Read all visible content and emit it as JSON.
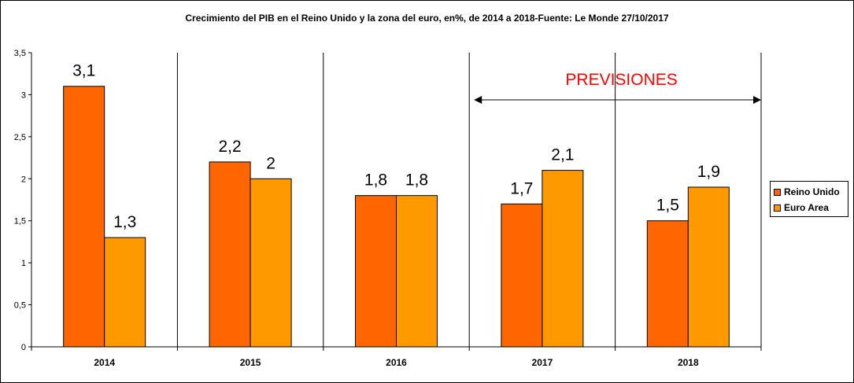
{
  "chart_data": {
    "type": "bar",
    "title": "Crecimiento del PIB en el Reino Unido y la zona del euro, en%, de 2014 a 2018-Fuente: Le Monde 27/10/2017",
    "categories": [
      "2014",
      "2015",
      "2016",
      "2017",
      "2018"
    ],
    "series": [
      {
        "name": "Reino Unido",
        "values": [
          3.1,
          2.2,
          1.8,
          1.7,
          1.5
        ],
        "labels": [
          "3,1",
          "2,2",
          "1,8",
          "1,7",
          "1,5"
        ],
        "color": "#FF6600"
      },
      {
        "name": "Euro Area",
        "values": [
          1.3,
          2.0,
          1.8,
          2.1,
          1.9
        ],
        "labels": [
          "1,3",
          "2",
          "1,8",
          "2,1",
          "1,9"
        ],
        "color": "#FF9900"
      }
    ],
    "ylim": [
      0,
      3.5
    ],
    "yticks": [
      0,
      0.5,
      1,
      1.5,
      2,
      2.5,
      3,
      3.5
    ],
    "ytick_labels": [
      "0",
      "0,5",
      "1",
      "1,5",
      "2",
      "2,5",
      "3",
      "3,5"
    ],
    "xlabel": "",
    "ylabel": "",
    "grid": false,
    "legend_position": "right",
    "annotation": {
      "text": "PREVISIONES",
      "color": "#FF0000",
      "span_categories": [
        "2017",
        "2018"
      ]
    }
  }
}
